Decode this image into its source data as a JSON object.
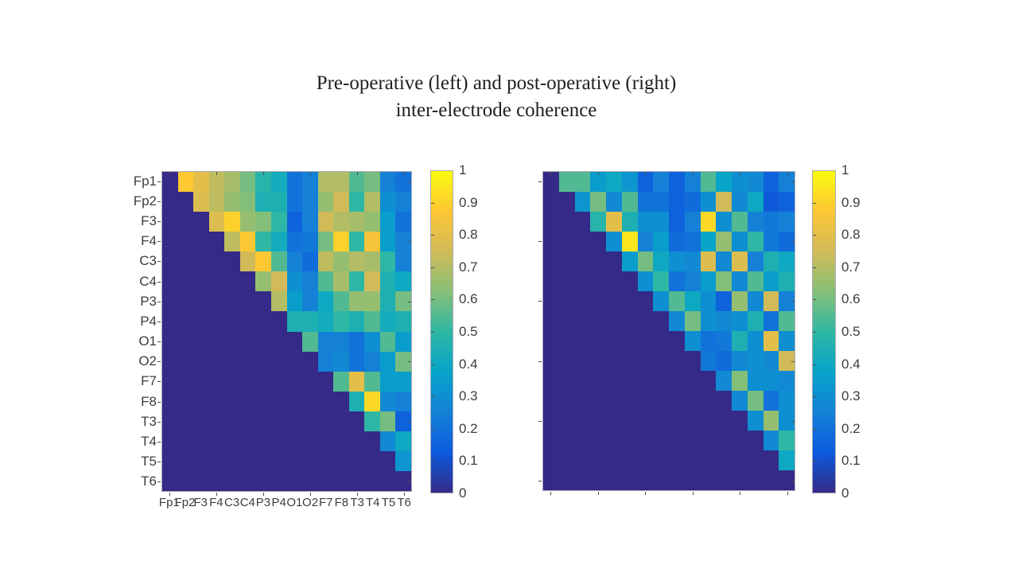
{
  "title": {
    "line1": "Pre-operative (left) and post-operative (right)",
    "line2": "inter-electrode coherence"
  },
  "electrodes": [
    "Fp1",
    "Fp2",
    "F3",
    "F4",
    "C3",
    "C4",
    "P3",
    "P4",
    "O1",
    "O2",
    "F7",
    "F8",
    "T3",
    "T4",
    "T5",
    "T6"
  ],
  "colorbar": {
    "tick_labels": [
      "1",
      "0.9",
      "0.8",
      "0.7",
      "0.6",
      "0.5",
      "0.4",
      "0.3",
      "0.2",
      "0.1",
      "0"
    ],
    "min": 0,
    "max": 1
  },
  "colors": {
    "background": "#ffffff",
    "axis_frame": "#a9a9b4",
    "tick_color": "#4d4d4d",
    "label_color": "#3d3d3d",
    "colormap_name": "parula",
    "parula_stops": [
      [
        0.0,
        "#352a87"
      ],
      [
        0.125,
        "#0c5bdd"
      ],
      [
        0.25,
        "#1481d6"
      ],
      [
        0.375,
        "#06a4ca"
      ],
      [
        0.5,
        "#2eb7a4"
      ],
      [
        0.625,
        "#87bf77"
      ],
      [
        0.75,
        "#d1bb59"
      ],
      [
        0.875,
        "#fec634"
      ],
      [
        1.0,
        "#f9fb0e"
      ]
    ]
  },
  "chart_data": [
    {
      "type": "heatmap",
      "name": "pre-operative",
      "x_categories": [
        "Fp1",
        "Fp2",
        "F3",
        "F4",
        "C3",
        "C4",
        "P3",
        "P4",
        "O1",
        "O2",
        "F7",
        "F8",
        "T3",
        "T4",
        "T5",
        "T6"
      ],
      "y_categories": [
        "Fp1",
        "Fp2",
        "F3",
        "F4",
        "C3",
        "C4",
        "P3",
        "P4",
        "O1",
        "O2",
        "F7",
        "F8",
        "T3",
        "T4",
        "T5",
        "T6"
      ],
      "zlim": [
        0,
        1
      ],
      "show_x_labels": true,
      "show_y_labels": true,
      "values": [
        [
          0,
          0.88,
          0.8,
          0.72,
          0.68,
          0.6,
          0.48,
          0.42,
          0.2,
          0.25,
          0.7,
          0.7,
          0.55,
          0.6,
          0.25,
          0.2
        ],
        [
          0,
          0,
          0.78,
          0.72,
          0.65,
          0.62,
          0.45,
          0.45,
          0.2,
          0.25,
          0.65,
          0.75,
          0.5,
          0.7,
          0.3,
          0.25
        ],
        [
          0,
          0,
          0,
          0.78,
          0.9,
          0.65,
          0.62,
          0.5,
          0.15,
          0.25,
          0.75,
          0.7,
          0.68,
          0.65,
          0.35,
          0.2
        ],
        [
          0,
          0,
          0,
          0,
          0.72,
          0.88,
          0.5,
          0.42,
          0.2,
          0.22,
          0.6,
          0.9,
          0.5,
          0.85,
          0.35,
          0.25
        ],
        [
          0,
          0,
          0,
          0,
          0,
          0.75,
          0.88,
          0.55,
          0.25,
          0.18,
          0.72,
          0.65,
          0.7,
          0.68,
          0.5,
          0.25
        ],
        [
          0,
          0,
          0,
          0,
          0,
          0,
          0.65,
          0.75,
          0.3,
          0.25,
          0.55,
          0.68,
          0.5,
          0.75,
          0.45,
          0.4
        ],
        [
          0,
          0,
          0,
          0,
          0,
          0,
          0,
          0.7,
          0.35,
          0.25,
          0.4,
          0.55,
          0.65,
          0.65,
          0.45,
          0.6
        ],
        [
          0,
          0,
          0,
          0,
          0,
          0,
          0,
          0,
          0.45,
          0.45,
          0.42,
          0.5,
          0.45,
          0.55,
          0.42,
          0.45
        ],
        [
          0,
          0,
          0,
          0,
          0,
          0,
          0,
          0,
          0,
          0.55,
          0.25,
          0.25,
          0.2,
          0.3,
          0.55,
          0.35
        ],
        [
          0,
          0,
          0,
          0,
          0,
          0,
          0,
          0,
          0,
          0,
          0.25,
          0.28,
          0.2,
          0.25,
          0.35,
          0.6
        ],
        [
          0,
          0,
          0,
          0,
          0,
          0,
          0,
          0,
          0,
          0,
          0,
          0.55,
          0.8,
          0.55,
          0.35,
          0.35
        ],
        [
          0,
          0,
          0,
          0,
          0,
          0,
          0,
          0,
          0,
          0,
          0,
          0,
          0.45,
          0.92,
          0.28,
          0.25
        ],
        [
          0,
          0,
          0,
          0,
          0,
          0,
          0,
          0,
          0,
          0,
          0,
          0,
          0,
          0.5,
          0.6,
          0.15
        ],
        [
          0,
          0,
          0,
          0,
          0,
          0,
          0,
          0,
          0,
          0,
          0,
          0,
          0,
          0,
          0.28,
          0.4
        ],
        [
          0,
          0,
          0,
          0,
          0,
          0,
          0,
          0,
          0,
          0,
          0,
          0,
          0,
          0,
          0,
          0.32
        ],
        [
          0,
          0,
          0,
          0,
          0,
          0,
          0,
          0,
          0,
          0,
          0,
          0,
          0,
          0,
          0,
          0
        ]
      ]
    },
    {
      "type": "heatmap",
      "name": "post-operative",
      "x_categories": [
        "Fp1",
        "Fp2",
        "F3",
        "F4",
        "C3",
        "C4",
        "P3",
        "P4",
        "O1",
        "O2",
        "F7",
        "F8",
        "T3",
        "T4",
        "T5",
        "T6"
      ],
      "y_categories": [
        "Fp1",
        "Fp2",
        "F3",
        "F4",
        "C3",
        "C4",
        "P3",
        "P4",
        "O1",
        "O2",
        "F7",
        "F8",
        "T3",
        "T4",
        "T5",
        "T6"
      ],
      "zlim": [
        0,
        1
      ],
      "show_x_labels": false,
      "show_y_labels": false,
      "values": [
        [
          0,
          0.55,
          0.55,
          0.35,
          0.4,
          0.32,
          0.15,
          0.25,
          0.15,
          0.25,
          0.55,
          0.38,
          0.3,
          0.28,
          0.15,
          0.25
        ],
        [
          0,
          0,
          0.32,
          0.6,
          0.28,
          0.55,
          0.2,
          0.2,
          0.15,
          0.18,
          0.3,
          0.75,
          0.28,
          0.4,
          0.12,
          0.15
        ],
        [
          0,
          0,
          0,
          0.48,
          0.8,
          0.45,
          0.3,
          0.3,
          0.15,
          0.25,
          0.92,
          0.3,
          0.55,
          0.25,
          0.22,
          0.25
        ],
        [
          0,
          0,
          0,
          0,
          0.3,
          0.95,
          0.25,
          0.35,
          0.18,
          0.2,
          0.38,
          0.65,
          0.3,
          0.5,
          0.22,
          0.18
        ],
        [
          0,
          0,
          0,
          0,
          0,
          0.35,
          0.6,
          0.4,
          0.3,
          0.28,
          0.78,
          0.28,
          0.78,
          0.25,
          0.45,
          0.4
        ],
        [
          0,
          0,
          0,
          0,
          0,
          0,
          0.3,
          0.5,
          0.2,
          0.25,
          0.35,
          0.62,
          0.28,
          0.55,
          0.35,
          0.45
        ],
        [
          0,
          0,
          0,
          0,
          0,
          0,
          0,
          0.3,
          0.55,
          0.4,
          0.3,
          0.15,
          0.65,
          0.28,
          0.75,
          0.25
        ],
        [
          0,
          0,
          0,
          0,
          0,
          0,
          0,
          0,
          0.28,
          0.6,
          0.3,
          0.28,
          0.3,
          0.45,
          0.2,
          0.55
        ],
        [
          0,
          0,
          0,
          0,
          0,
          0,
          0,
          0,
          0,
          0.3,
          0.2,
          0.22,
          0.45,
          0.3,
          0.8,
          0.3
        ],
        [
          0,
          0,
          0,
          0,
          0,
          0,
          0,
          0,
          0,
          0,
          0.22,
          0.18,
          0.28,
          0.3,
          0.28,
          0.75
        ],
        [
          0,
          0,
          0,
          0,
          0,
          0,
          0,
          0,
          0,
          0,
          0,
          0.28,
          0.62,
          0.3,
          0.3,
          0.28
        ],
        [
          0,
          0,
          0,
          0,
          0,
          0,
          0,
          0,
          0,
          0,
          0,
          0,
          0.28,
          0.6,
          0.2,
          0.3
        ],
        [
          0,
          0,
          0,
          0,
          0,
          0,
          0,
          0,
          0,
          0,
          0,
          0,
          0,
          0.3,
          0.65,
          0.3
        ],
        [
          0,
          0,
          0,
          0,
          0,
          0,
          0,
          0,
          0,
          0,
          0,
          0,
          0,
          0,
          0.28,
          0.5
        ],
        [
          0,
          0,
          0,
          0,
          0,
          0,
          0,
          0,
          0,
          0,
          0,
          0,
          0,
          0,
          0,
          0.4
        ],
        [
          0,
          0,
          0,
          0,
          0,
          0,
          0,
          0,
          0,
          0,
          0,
          0,
          0,
          0,
          0,
          0
        ]
      ]
    }
  ]
}
